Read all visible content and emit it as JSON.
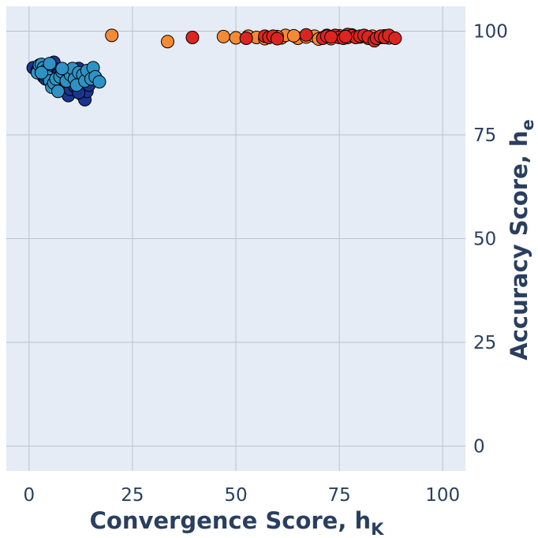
{
  "chart_data": {
    "type": "scatter",
    "x_axis": {
      "label_main": "Convergence Score, h",
      "label_sub": "K",
      "range": [
        -5.5,
        105.5
      ],
      "ticks": [
        0,
        25,
        50,
        75,
        100
      ],
      "tick_labels": [
        "0",
        "25",
        "50",
        "75",
        "100"
      ]
    },
    "y_axis": {
      "label_main": "Accuracy Score, h",
      "label_sub": "e",
      "range": [
        -6,
        106
      ],
      "ticks": [
        0,
        25,
        50,
        75,
        100
      ],
      "tick_labels": [
        "0",
        "25",
        "50",
        "75",
        "100"
      ],
      "position": "right"
    },
    "grid": true,
    "plot_background": "#e5ecf6",
    "grid_color": "#bcc2cc",
    "marker_edge_color": "#000000",
    "series": [
      {
        "color": "#1a3590",
        "points": [
          [
            1,
            91.2
          ],
          [
            2,
            90.5
          ],
          [
            3,
            91.8
          ],
          [
            3.5,
            89
          ],
          [
            4,
            88.5
          ],
          [
            4.5,
            90.2
          ],
          [
            5,
            91
          ],
          [
            5.5,
            92
          ],
          [
            6,
            92.5
          ],
          [
            6.5,
            90.8
          ],
          [
            7,
            89.5
          ],
          [
            7.5,
            88
          ],
          [
            8,
            87.5
          ],
          [
            8.5,
            86.5
          ],
          [
            9,
            87
          ],
          [
            9.5,
            84.5
          ],
          [
            10,
            86
          ],
          [
            10.5,
            88.5
          ],
          [
            11,
            90
          ],
          [
            11.5,
            89
          ],
          [
            12,
            91
          ],
          [
            12.5,
            86
          ],
          [
            13,
            84.5
          ],
          [
            13.5,
            83.5
          ],
          [
            14,
            85.5
          ],
          [
            14.5,
            87
          ],
          [
            15,
            88.5
          ],
          [
            15.5,
            89.5
          ],
          [
            16,
            88.8
          ],
          [
            11,
            86.8
          ],
          [
            12,
            85.2
          ]
        ]
      },
      {
        "color": "#2e92c4",
        "points": [
          [
            2,
            90
          ],
          [
            2.5,
            91.8
          ],
          [
            3,
            92
          ],
          [
            3.5,
            91.2
          ],
          [
            4,
            90.5
          ],
          [
            4.5,
            89
          ],
          [
            5,
            88
          ],
          [
            5.5,
            86.5
          ],
          [
            6,
            87.5
          ],
          [
            6.5,
            88.5
          ],
          [
            7,
            85.5
          ],
          [
            7.5,
            89
          ],
          [
            8,
            90.2
          ],
          [
            9,
            88
          ],
          [
            10,
            89.5
          ],
          [
            10.5,
            91
          ],
          [
            11,
            88.5
          ],
          [
            11.5,
            87
          ],
          [
            12,
            90
          ],
          [
            13,
            89.5
          ],
          [
            13.5,
            88
          ],
          [
            14,
            90.5
          ],
          [
            15,
            88.5
          ],
          [
            15.5,
            91.2
          ],
          [
            16,
            89
          ],
          [
            17,
            87.8
          ],
          [
            3,
            90
          ],
          [
            5,
            92.2
          ],
          [
            8,
            91
          ]
        ]
      },
      {
        "color": "#f58a35",
        "points": [
          [
            20,
            99
          ],
          [
            33.5,
            97.5
          ],
          [
            47,
            98.7
          ],
          [
            50,
            98.4
          ],
          [
            53,
            98.8
          ],
          [
            55,
            98.5
          ],
          [
            57,
            98.2
          ],
          [
            61,
            98.4
          ],
          [
            62,
            99
          ],
          [
            65,
            98.3
          ],
          [
            67,
            98.6
          ],
          [
            69,
            98.8
          ],
          [
            71,
            98.4
          ],
          [
            72,
            99
          ],
          [
            73,
            98.2
          ],
          [
            75,
            98.9
          ],
          [
            77,
            98.5
          ],
          [
            78,
            99.1
          ],
          [
            80,
            98.6
          ],
          [
            82,
            98.3
          ],
          [
            83,
            98.8
          ],
          [
            85,
            98.5
          ],
          [
            86,
            98.9
          ],
          [
            87,
            98.4
          ],
          [
            60,
            98.7
          ],
          [
            64,
            98.9
          ],
          [
            70,
            98.1
          ]
        ]
      },
      {
        "color": "#dc2520",
        "points": [
          [
            39.5,
            98.5
          ],
          [
            52.5,
            98.3
          ],
          [
            57,
            98.8
          ],
          [
            58,
            98.5
          ],
          [
            59,
            98.8
          ],
          [
            60,
            98.2
          ],
          [
            67,
            99.1
          ],
          [
            71,
            98.3
          ],
          [
            72,
            98.8
          ],
          [
            74,
            99
          ],
          [
            75,
            98.5
          ],
          [
            76,
            98.3
          ],
          [
            77,
            99.2
          ],
          [
            78,
            98.9
          ],
          [
            79,
            98.5
          ],
          [
            80,
            98.8
          ],
          [
            81,
            99
          ],
          [
            82,
            98.6
          ],
          [
            83.5,
            97.7
          ],
          [
            84,
            98.3
          ],
          [
            85,
            98.8
          ],
          [
            86,
            98.5
          ],
          [
            87,
            99
          ],
          [
            88.5,
            98.3
          ],
          [
            73,
            98.6
          ],
          [
            76.5,
            98.7
          ]
        ]
      }
    ]
  }
}
